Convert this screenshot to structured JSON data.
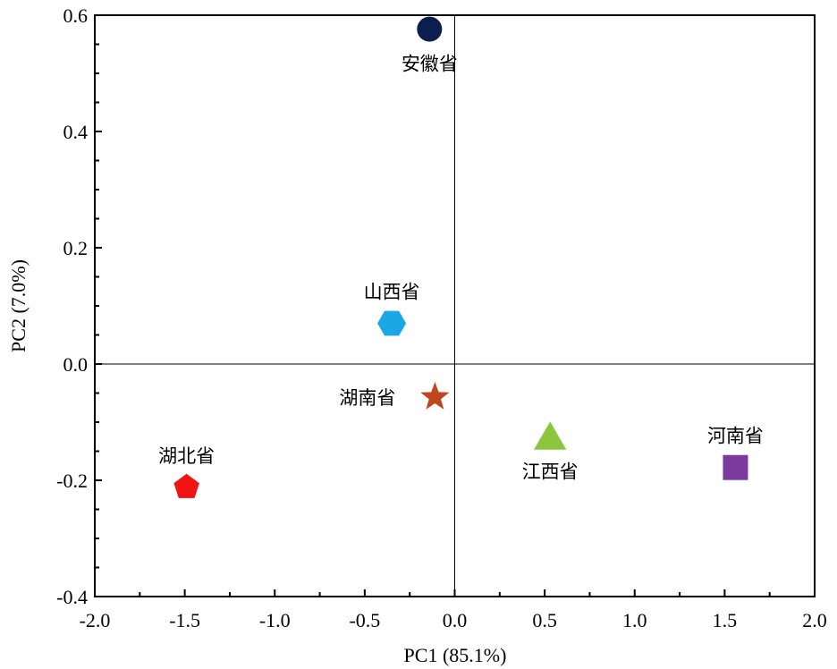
{
  "chart_data": {
    "type": "scatter",
    "xlabel": "PC1 (85.1%)",
    "ylabel": "PC2 (7.0%)",
    "xlim": [
      -2.0,
      2.0
    ],
    "ylim": [
      -0.4,
      0.6
    ],
    "x_ticks": [
      "-2.0",
      "-1.5",
      "-1.0",
      "-0.5",
      "0.0",
      "0.5",
      "1.0",
      "1.5",
      "2.0"
    ],
    "y_ticks": [
      "-0.4",
      "-0.2",
      "0.0",
      "0.2",
      "0.4",
      "0.6"
    ],
    "reference_lines": {
      "x": 0,
      "y": 0
    },
    "grid": false,
    "points": [
      {
        "label": "安徽省",
        "x": -0.14,
        "y": 0.576,
        "marker": "circle",
        "color": "#0b1f4e",
        "label_pos": "below"
      },
      {
        "label": "山西省",
        "x": -0.35,
        "y": 0.07,
        "marker": "hexagon",
        "color": "#1aa7e6",
        "label_pos": "above"
      },
      {
        "label": "湖南省",
        "x": -0.11,
        "y": -0.057,
        "marker": "star",
        "color": "#c0461e",
        "label_pos": "left"
      },
      {
        "label": "湖北省",
        "x": -1.49,
        "y": -0.212,
        "marker": "pentagon",
        "color": "#f01414",
        "label_pos": "above"
      },
      {
        "label": "江西省",
        "x": 0.53,
        "y": -0.125,
        "marker": "triangle",
        "color": "#8cc63f",
        "label_pos": "below"
      },
      {
        "label": "河南省",
        "x": 1.56,
        "y": -0.178,
        "marker": "square",
        "color": "#7a3a9e",
        "label_pos": "above"
      }
    ]
  }
}
